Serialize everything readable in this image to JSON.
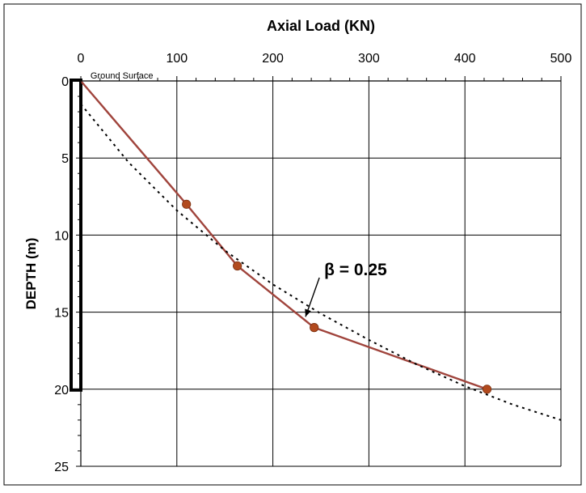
{
  "chart_data": {
    "type": "line",
    "title": "Axial Load  (KN)",
    "xlabel": "",
    "ylabel": "DEPTH  (m)",
    "xlim": [
      0,
      500
    ],
    "ylim": [
      0,
      25
    ],
    "y_inverted": true,
    "x_axis_position": "top",
    "x_ticks": [
      0,
      100,
      200,
      300,
      400,
      500
    ],
    "y_ticks": [
      0,
      5,
      10,
      15,
      20,
      25
    ],
    "grid": true,
    "series": [
      {
        "name": "",
        "style": "solid line with markers",
        "color": "#a0443c",
        "marker_color": "#b24a1e",
        "x": [
          0,
          110,
          163,
          243,
          423
        ],
        "y": [
          0,
          8,
          12,
          16,
          20
        ]
      },
      {
        "name": "",
        "style": "dotted",
        "color": "#000000",
        "x": [
          0,
          50,
          100,
          150,
          200,
          250,
          300,
          350,
          400,
          450,
          500
        ],
        "y": [
          1.5,
          5.3,
          8.4,
          11.0,
          13.2,
          15.1,
          16.8,
          18.4,
          19.8,
          21.0,
          22.0
        ]
      }
    ],
    "annotations": [
      {
        "text": "Ground Surface",
        "x": 10,
        "y": 0
      },
      {
        "text": "β = 0.25",
        "x": 240,
        "y": 12.5,
        "arrow_to": [
          234,
          15.3
        ]
      }
    ],
    "pile": {
      "top_depth": 0,
      "bottom_depth": 20
    }
  }
}
